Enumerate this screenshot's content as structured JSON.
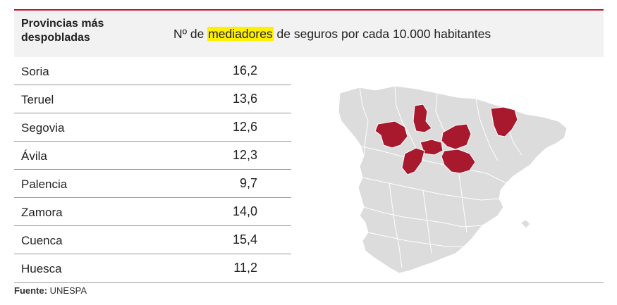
{
  "chart_data": {
    "type": "table",
    "title": "",
    "columns": [
      "Provincias más despobladas",
      "Nº de mediadores de seguros por cada 10.000 habitantes"
    ],
    "header_left": "Provincias más despobladas",
    "header_right": {
      "prefix": "Nº de ",
      "highlight": "mediadores",
      "suffix": " de seguros por cada 10.000 habitantes"
    },
    "rows": [
      {
        "province": "Soria",
        "value": "16,2"
      },
      {
        "province": "Teruel",
        "value": "13,6"
      },
      {
        "province": "Segovia",
        "value": "12,6"
      },
      {
        "province": "Ávila",
        "value": "12,3"
      },
      {
        "province": "Palencia",
        "value": "9,7"
      },
      {
        "province": "Zamora",
        "value": "14,0"
      },
      {
        "province": "Cuenca",
        "value": "15,4"
      },
      {
        "province": "Huesca",
        "value": "11,2"
      }
    ],
    "highlight_color": "#ffef00",
    "map_highlight_color": "#a8192e",
    "map_base_color": "#dcdcdc"
  },
  "source": {
    "label": "Fuente:",
    "text": " UNESPA"
  },
  "colors": {
    "accent_line": "#c8102e",
    "header_bg": "#f2f2f2"
  }
}
